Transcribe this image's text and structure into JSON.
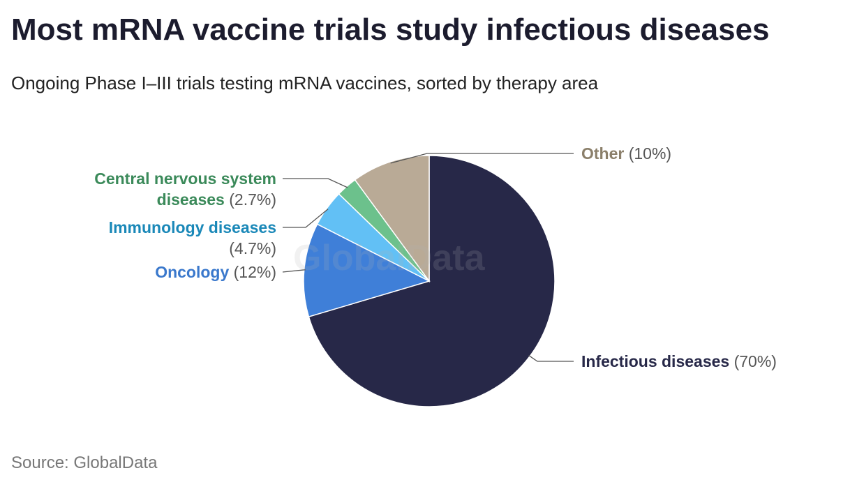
{
  "chart_data": {
    "type": "pie",
    "title": "Most mRNA vaccine trials study infectious diseases",
    "subtitle": "Ongoing Phase I–III trials testing mRNA vaccines, sorted by therapy area",
    "source": "Source: GlobalData",
    "watermark": "GlobalData",
    "categories": [
      "Infectious diseases",
      "Oncology",
      "Immunology diseases",
      "Central nervous system diseases",
      "Other"
    ],
    "values": [
      70,
      12,
      4.7,
      2.7,
      10
    ],
    "value_labels": [
      "(70%)",
      "(12%)",
      "(4.7%)",
      "(2.7%)",
      "(10%)"
    ],
    "colors": [
      "#272848",
      "#3f7fd8",
      "#62c0f5",
      "#6cc18c",
      "#b9aa96"
    ],
    "label_colors": [
      "#272848",
      "#3a78cc",
      "#1a88b8",
      "#3b8a5a",
      "#8b7f6a"
    ]
  }
}
